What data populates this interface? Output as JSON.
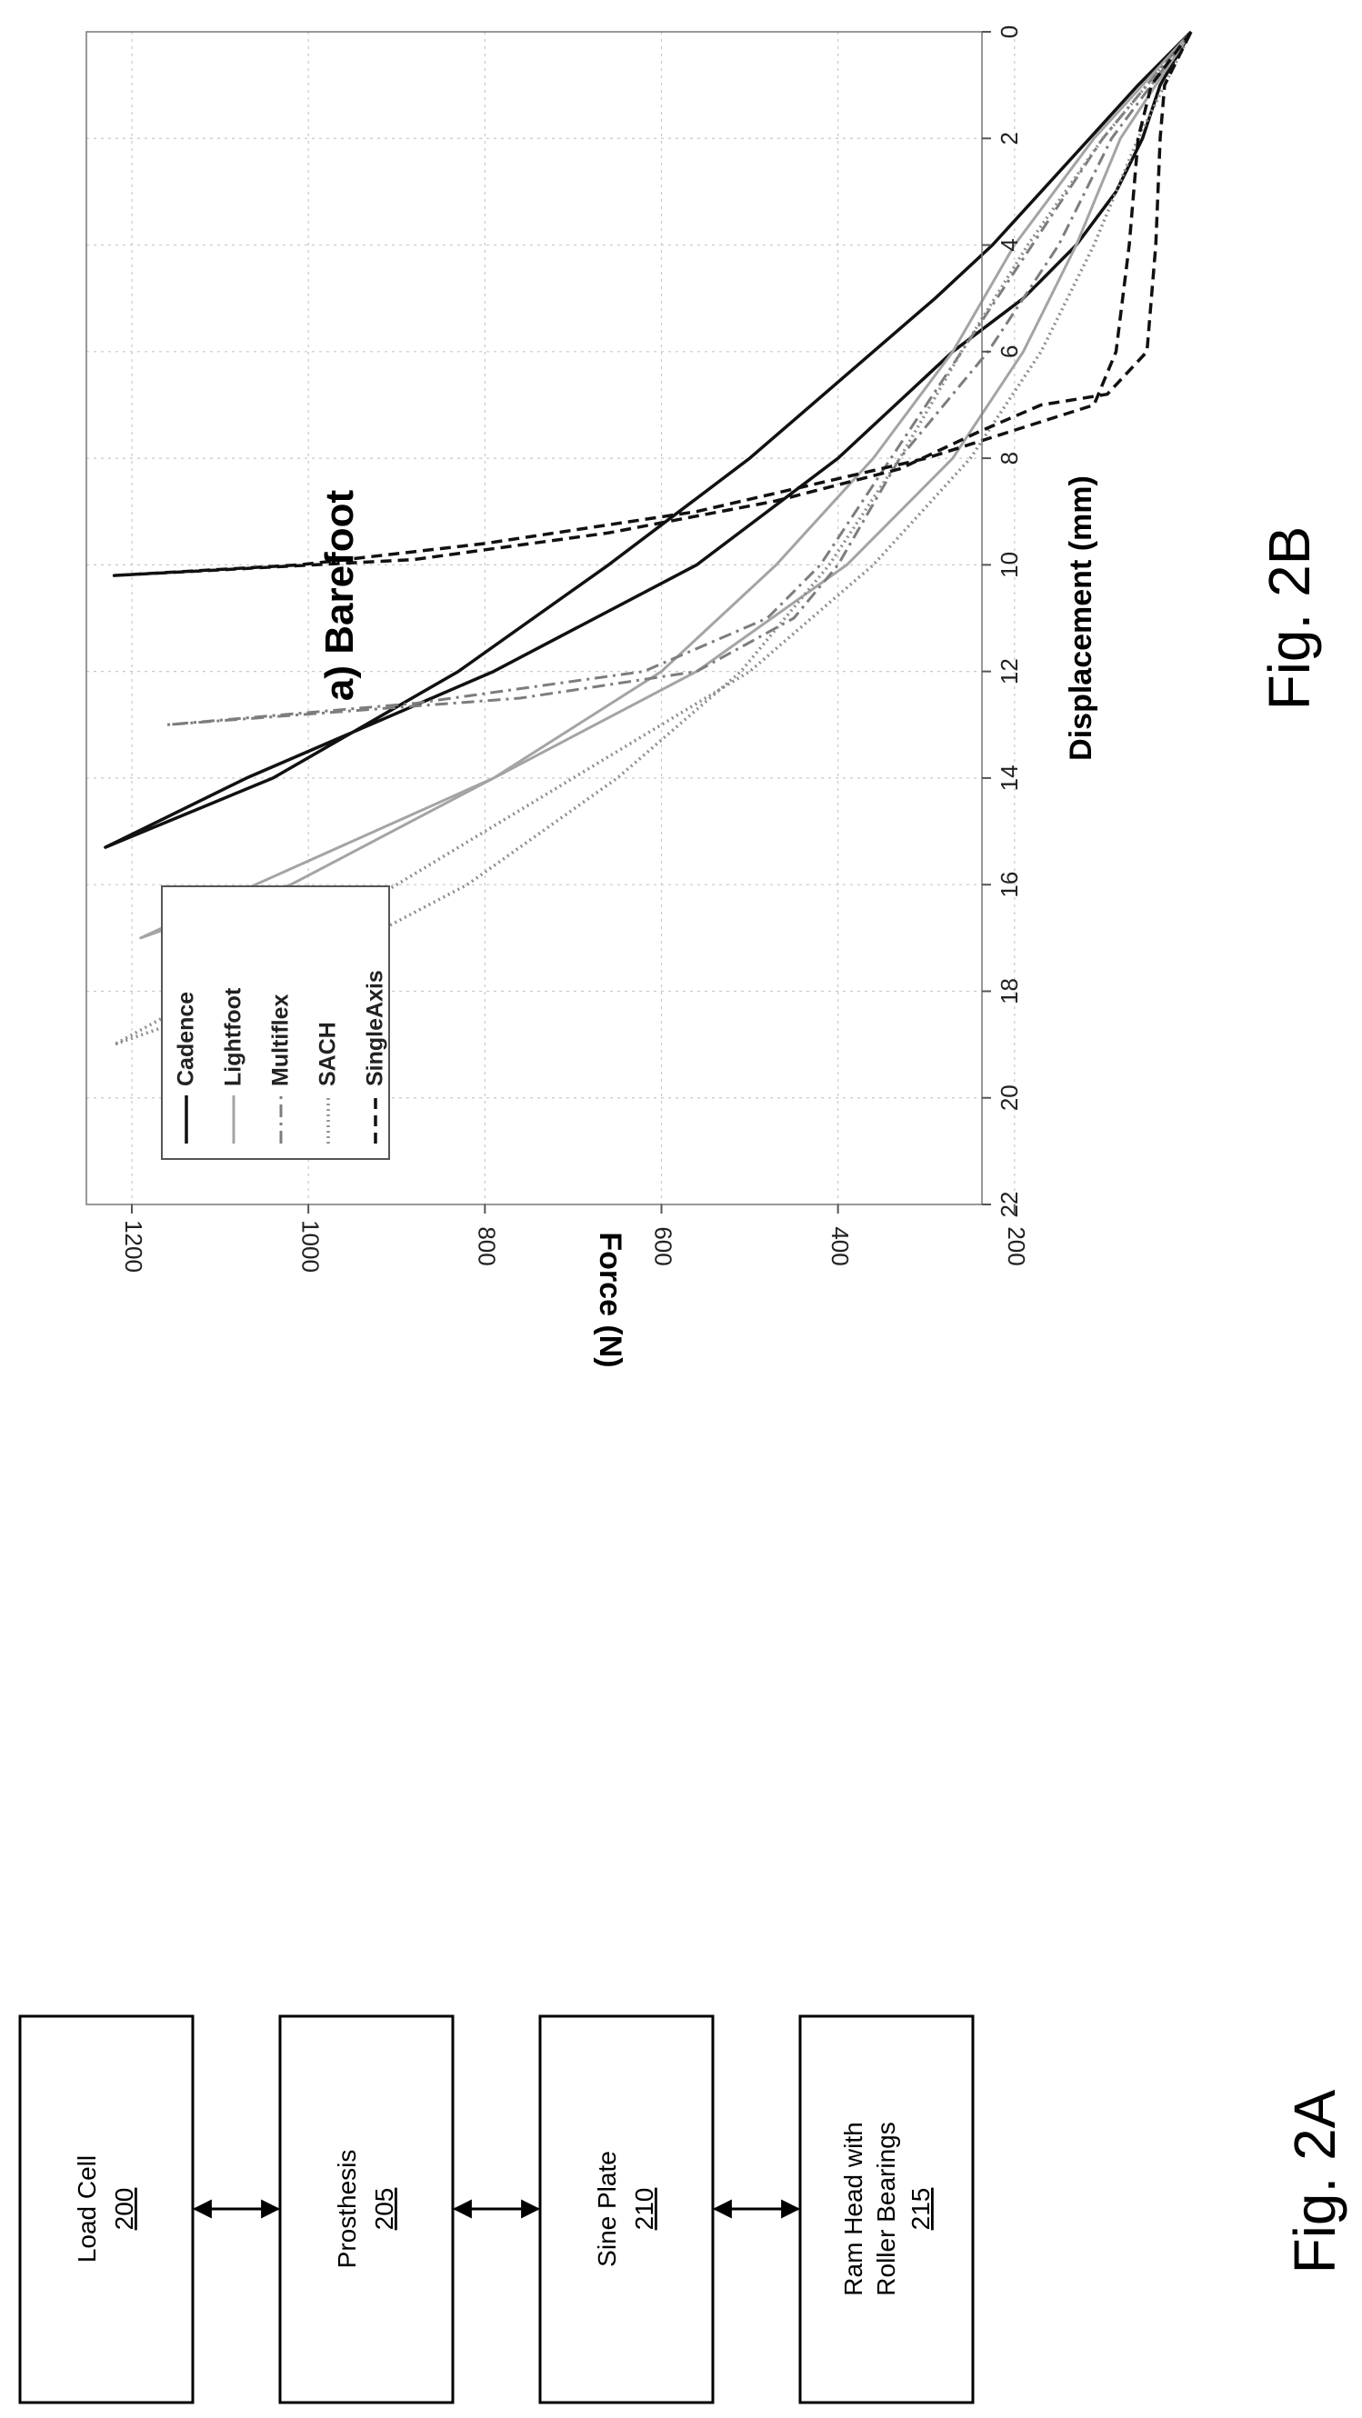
{
  "fig2a": {
    "caption": "Fig. 2A",
    "blocks": [
      {
        "label": "Load Cell",
        "ref": "200"
      },
      {
        "label": "Prosthesis",
        "ref": "205"
      },
      {
        "label": "Sine Plate",
        "ref": "210"
      },
      {
        "label1": "Ram Head with",
        "label2": "Roller Bearings",
        "ref": "215"
      }
    ]
  },
  "fig2b": {
    "caption": "Fig. 2B",
    "chart_data": {
      "type": "line",
      "title": "a) Barefoot",
      "xlabel": "Displacement (mm)",
      "ylabel": "Force (N)",
      "xlim": [
        0,
        22
      ],
      "ylim": [
        0,
        1250
      ],
      "xticks": [
        "0",
        "2",
        "4",
        "6",
        "8",
        "10",
        "12",
        "14",
        "16",
        "18",
        "20",
        "22"
      ],
      "yticks": [
        "200",
        "400",
        "600",
        "800",
        "1000",
        "1200"
      ],
      "grid": true,
      "legend_position": "top-left",
      "series": [
        {
          "name": "Cadence",
          "style": "solid-black",
          "loading": [
            [
              0,
              0
            ],
            [
              1,
              60
            ],
            [
              2,
              115
            ],
            [
              3,
              170
            ],
            [
              4,
              225
            ],
            [
              5,
              290
            ],
            [
              6,
              360
            ],
            [
              8,
              500
            ],
            [
              10,
              660
            ],
            [
              12,
              830
            ],
            [
              14,
              1040
            ],
            [
              15.3,
              1230
            ]
          ],
          "unloading": [
            [
              15.3,
              1230
            ],
            [
              14,
              1070
            ],
            [
              12,
              790
            ],
            [
              10,
              560
            ],
            [
              8,
              400
            ],
            [
              6,
              270
            ],
            [
              5,
              190
            ],
            [
              4,
              130
            ],
            [
              3,
              85
            ],
            [
              2,
              55
            ],
            [
              1,
              35
            ],
            [
              0,
              0
            ]
          ]
        },
        {
          "name": "Lightfoot",
          "style": "solid-grey",
          "loading": [
            [
              0,
              0
            ],
            [
              2,
              110
            ],
            [
              4,
              200
            ],
            [
              6,
              270
            ],
            [
              8,
              360
            ],
            [
              10,
              470
            ],
            [
              12,
              600
            ],
            [
              14,
              790
            ],
            [
              16,
              1020
            ],
            [
              17,
              1190
            ]
          ],
          "unloading": [
            [
              17,
              1190
            ],
            [
              16,
              1060
            ],
            [
              14,
              790
            ],
            [
              12,
              560
            ],
            [
              10,
              390
            ],
            [
              8,
              270
            ],
            [
              6,
              190
            ],
            [
              4,
              130
            ],
            [
              2,
              80
            ],
            [
              0,
              0
            ]
          ]
        },
        {
          "name": "Multiflex",
          "style": "dashdot-grey",
          "loading": [
            [
              0,
              0
            ],
            [
              2,
              100
            ],
            [
              4,
              180
            ],
            [
              6,
              260
            ],
            [
              8,
              340
            ],
            [
              10,
              420
            ],
            [
              11,
              480
            ],
            [
              12,
              620
            ],
            [
              12.6,
              880
            ],
            [
              13,
              1160
            ]
          ],
          "unloading": [
            [
              13,
              1160
            ],
            [
              12.5,
              760
            ],
            [
              12,
              560
            ],
            [
              11,
              450
            ],
            [
              10,
              400
            ],
            [
              8,
              330
            ],
            [
              6,
              230
            ],
            [
              4,
              150
            ],
            [
              2,
              90
            ],
            [
              0,
              0
            ]
          ]
        },
        {
          "name": "SACH",
          "style": "dotted-grey",
          "loading": [
            [
              0,
              0
            ],
            [
              2,
              100
            ],
            [
              4,
              185
            ],
            [
              6,
              260
            ],
            [
              8,
              330
            ],
            [
              10,
              410
            ],
            [
              12,
              510
            ],
            [
              14,
              650
            ],
            [
              16,
              820
            ],
            [
              18,
              1050
            ],
            [
              19,
              1220
            ]
          ],
          "unloading": [
            [
              19,
              1220
            ],
            [
              18,
              1110
            ],
            [
              16,
              900
            ],
            [
              14,
              700
            ],
            [
              12,
              500
            ],
            [
              10,
              360
            ],
            [
              8,
              250
            ],
            [
              6,
              170
            ],
            [
              4,
              110
            ],
            [
              2,
              60
            ],
            [
              0,
              0
            ]
          ]
        },
        {
          "name": "SingleAxis",
          "style": "dashed-black",
          "loading": [
            [
              0,
              0
            ],
            [
              1,
              45
            ],
            [
              2,
              60
            ],
            [
              4,
              70
            ],
            [
              6,
              85
            ],
            [
              7,
              110
            ],
            [
              8,
              300
            ],
            [
              9,
              560
            ],
            [
              9.6,
              800
            ],
            [
              10,
              1010
            ],
            [
              10.2,
              1220
            ]
          ],
          "unloading": [
            [
              10.2,
              1220
            ],
            [
              9.9,
              880
            ],
            [
              9.4,
              660
            ],
            [
              8.8,
              470
            ],
            [
              8.2,
              330
            ],
            [
              7.5,
              240
            ],
            [
              7,
              170
            ],
            [
              6.8,
              95
            ],
            [
              6,
              50
            ],
            [
              4,
              40
            ],
            [
              2,
              35
            ],
            [
              1,
              30
            ],
            [
              0,
              0
            ]
          ]
        }
      ]
    }
  }
}
